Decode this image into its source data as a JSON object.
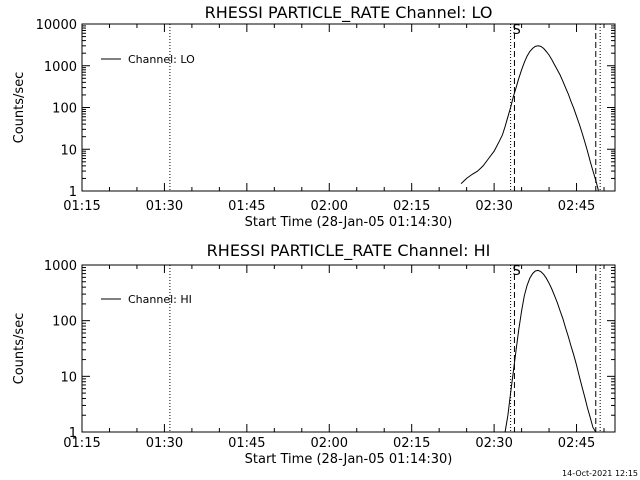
{
  "footer": {
    "timestamp": "14-Oct-2021 12:15"
  },
  "chart_data": [
    {
      "type": "line",
      "title": "RHESSI PARTICLE_RATE Channel: LO",
      "xlabel": "Start Time (28-Jan-05 01:14:30)",
      "ylabel": "Counts/sec",
      "y_scale": "log",
      "ylim": [
        1,
        10000
      ],
      "xlim_minutes_after_0115": [
        0,
        97
      ],
      "x_ticks": [
        "01:15",
        "01:30",
        "01:45",
        "02:00",
        "02:15",
        "02:30",
        "02:45"
      ],
      "y_ticks": [
        "1",
        "10",
        "100",
        "1000",
        "10000"
      ],
      "legend": {
        "label": "Channel: LO",
        "placement": "top-left"
      },
      "markers": [
        {
          "time": "01:31",
          "style": "dotted",
          "label": ""
        },
        {
          "time": "02:33",
          "style": "dotted",
          "label": ""
        },
        {
          "time": "02:33.7",
          "style": "dashed",
          "label": "S"
        },
        {
          "time": "02:48.5",
          "style": "dashed",
          "label": ""
        },
        {
          "time": "02:49.3",
          "style": "dotted",
          "label": ""
        }
      ],
      "series": [
        {
          "name": "Channel: LO",
          "x": [
            "02:24",
            "02:25",
            "02:26",
            "02:27",
            "02:28",
            "02:29",
            "02:30",
            "02:30.5",
            "02:31",
            "02:31.5",
            "02:32",
            "02:32.5",
            "02:33",
            "02:33.5",
            "02:34",
            "02:34.5",
            "02:35",
            "02:35.5",
            "02:36",
            "02:36.5",
            "02:37",
            "02:37.5",
            "02:38",
            "02:38.5",
            "02:39",
            "02:39.5",
            "02:40",
            "02:40.5",
            "02:41",
            "02:41.5",
            "02:42",
            "02:42.5",
            "02:43",
            "02:43.5",
            "02:44",
            "02:44.5",
            "02:45",
            "02:45.5",
            "02:46",
            "02:46.5",
            "02:47",
            "02:47.5",
            "02:48",
            "02:48.5",
            "02:49"
          ],
          "values": [
            1.5,
            2,
            2.5,
            3,
            4,
            6,
            9,
            12,
            16,
            22,
            35,
            60,
            100,
            180,
            300,
            500,
            800,
            1200,
            1700,
            2200,
            2600,
            2900,
            3000,
            2900,
            2600,
            2200,
            1800,
            1400,
            1050,
            800,
            600,
            430,
            300,
            210,
            140,
            95,
            62,
            40,
            25,
            15,
            9,
            5,
            3,
            1.8,
            1
          ]
        }
      ]
    },
    {
      "type": "line",
      "title": "RHESSI PARTICLE_RATE Channel: HI",
      "xlabel": "Start Time (28-Jan-05 01:14:30)",
      "ylabel": "Counts/sec",
      "y_scale": "log",
      "ylim": [
        1,
        1000
      ],
      "xlim_minutes_after_0115": [
        0,
        97
      ],
      "x_ticks": [
        "01:15",
        "01:30",
        "01:45",
        "02:00",
        "02:15",
        "02:30",
        "02:45"
      ],
      "y_ticks": [
        "1",
        "10",
        "100",
        "1000"
      ],
      "legend": {
        "label": "Channel: HI",
        "placement": "top-left"
      },
      "markers": [
        {
          "time": "01:31",
          "style": "dotted",
          "label": ""
        },
        {
          "time": "02:33",
          "style": "dotted",
          "label": ""
        },
        {
          "time": "02:33.7",
          "style": "dashed",
          "label": "S"
        },
        {
          "time": "02:48.5",
          "style": "dashed",
          "label": ""
        },
        {
          "time": "02:49.3",
          "style": "dotted",
          "label": ""
        }
      ],
      "series": [
        {
          "name": "Channel: HI",
          "x": [
            "02:32",
            "02:32.5",
            "02:33",
            "02:33.5",
            "02:34",
            "02:34.5",
            "02:35",
            "02:35.5",
            "02:36",
            "02:36.5",
            "02:37",
            "02:37.5",
            "02:38",
            "02:38.5",
            "02:39",
            "02:39.5",
            "02:40",
            "02:40.5",
            "02:41",
            "02:41.5",
            "02:42",
            "02:42.5",
            "02:43",
            "02:43.5",
            "02:44",
            "02:44.5",
            "02:45",
            "02:45.5",
            "02:46",
            "02:46.5",
            "02:47",
            "02:47.5",
            "02:48",
            "02:48.5"
          ],
          "values": [
            1,
            2,
            5,
            12,
            30,
            70,
            150,
            280,
            430,
            580,
            700,
            780,
            800,
            760,
            680,
            580,
            470,
            370,
            280,
            210,
            150,
            110,
            75,
            52,
            35,
            24,
            16,
            10,
            6.5,
            4.2,
            2.7,
            1.8,
            1.2,
            1
          ]
        }
      ]
    }
  ]
}
